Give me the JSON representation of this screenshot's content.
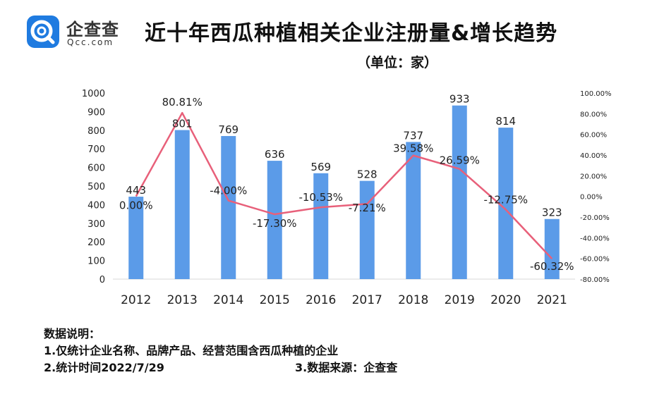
{
  "brand": {
    "name_cn": "企查查",
    "name_en": "Qcc.com"
  },
  "header": {
    "title": "近十年西瓜种植相关企业注册量&增长趋势",
    "subtitle": "（单位：家）"
  },
  "colors": {
    "bar": "#5b9be8",
    "line": "#e8607a",
    "brand": "#1f7be0"
  },
  "notes": {
    "heading": "数据说明：",
    "line1": "1.仅统计企业名称、品牌产品、经营范围含西瓜种植的企业",
    "line2": "2.统计时间2022/7/29",
    "line3": "3.数据来源：企查查"
  },
  "chart_data": {
    "type": "bar",
    "categories": [
      "2012",
      "2013",
      "2014",
      "2015",
      "2016",
      "2017",
      "2018",
      "2019",
      "2020",
      "2021"
    ],
    "series": [
      {
        "values": [
          443,
          801,
          769,
          636,
          569,
          528,
          737,
          933,
          814,
          323
        ],
        "kind": "bar",
        "axis": "left"
      },
      {
        "values": [
          0.0,
          80.81,
          -4.0,
          -17.3,
          -10.53,
          -7.21,
          39.58,
          26.59,
          -12.75,
          -60.32
        ],
        "kind": "line",
        "axis": "right",
        "unit": "%"
      }
    ],
    "bar_labels": [
      "443",
      "801",
      "769",
      "636",
      "569",
      "528",
      "737",
      "933",
      "814",
      "323"
    ],
    "line_labels": [
      "0.00%",
      "80.81%",
      "-4.00%",
      "-17.30%",
      "-10.53%",
      "-7.21%",
      "39.58%",
      "26.59%",
      "-12.75%",
      "-60.32%"
    ],
    "ylim_left": [
      0,
      1000
    ],
    "yticks_left": [
      "0",
      "100",
      "200",
      "300",
      "400",
      "500",
      "600",
      "700",
      "800",
      "900",
      "1000"
    ],
    "ylim_right": [
      -80,
      100
    ],
    "yticks_right": [
      "-80.00%",
      "-60.00%",
      "-40.00%",
      "-20.00%",
      "0.00%",
      "20.00%",
      "40.00%",
      "60.00%",
      "80.00%",
      "100.00%"
    ],
    "grid": false,
    "legend": "none"
  }
}
